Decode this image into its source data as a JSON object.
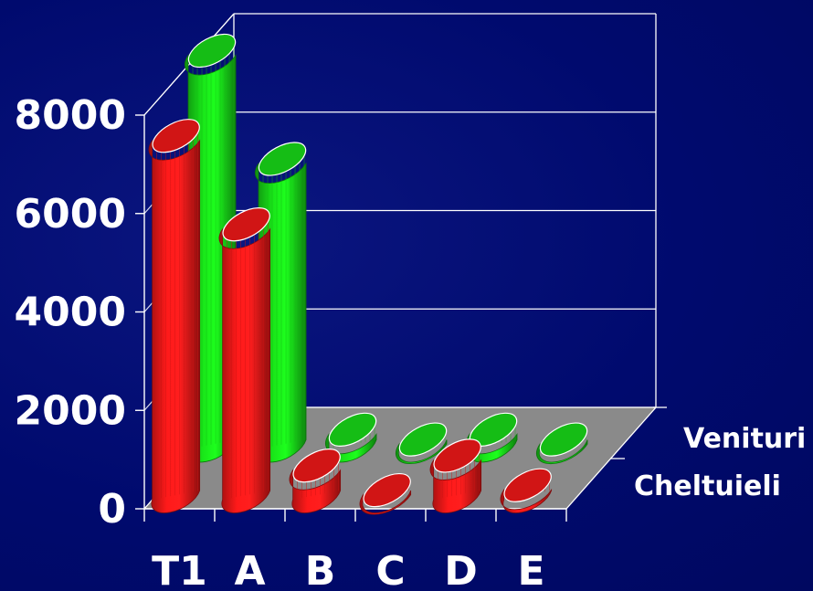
{
  "chart_data": {
    "type": "bar",
    "style": "3d-cylinder",
    "categories": [
      "T1",
      "A",
      "B",
      "C",
      "D",
      "E"
    ],
    "series": [
      {
        "name": "Cheltuieli",
        "color": "#ff1a1a",
        "values": [
          7300,
          5500,
          600,
          100,
          800,
          200
        ]
      },
      {
        "name": "Venituri",
        "color": "#19e619",
        "values": [
          8000,
          5800,
          300,
          100,
          300,
          100
        ]
      }
    ],
    "ylim": [
      0,
      8000
    ],
    "yticks": [
      0,
      2000,
      4000,
      6000,
      8000
    ],
    "grid": true,
    "legend": "right"
  }
}
